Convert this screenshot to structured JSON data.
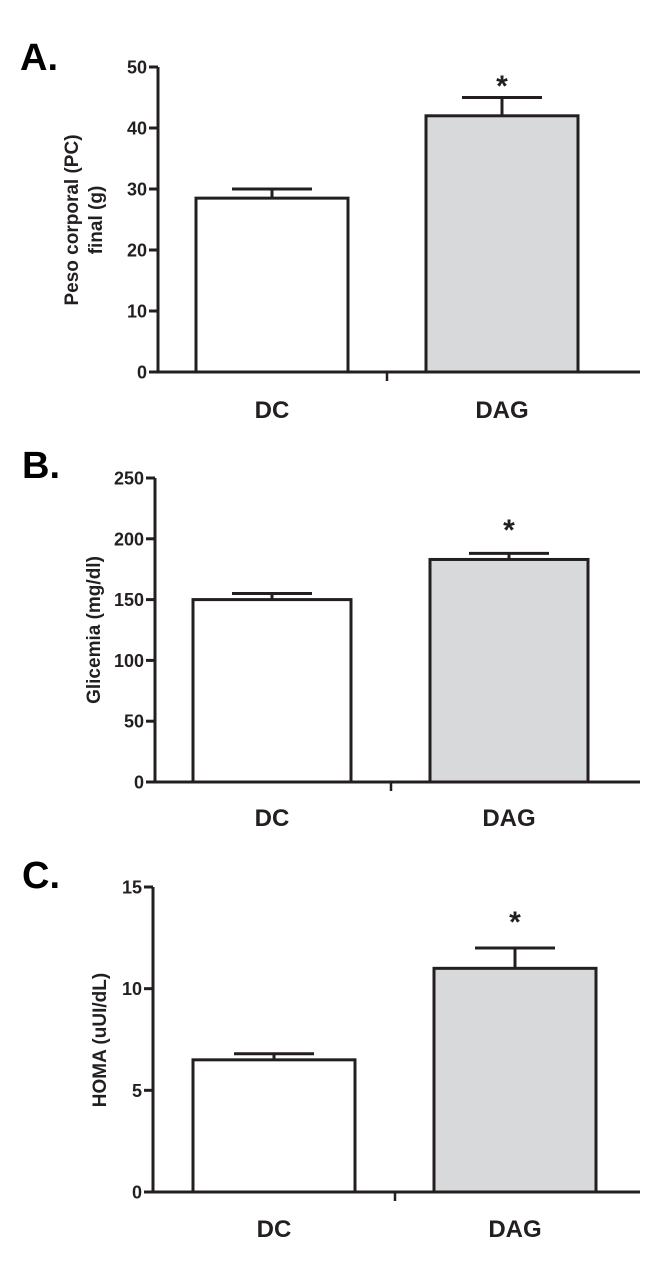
{
  "chart_data": [
    {
      "type": "bar",
      "panel_label": "A.",
      "title": "",
      "xlabel": "",
      "ylabel_lines": [
        "Peso corporal (PC)",
        "final (g)"
      ],
      "categories": [
        "DC",
        "DAG"
      ],
      "values": [
        28.5,
        42
      ],
      "error_upper": [
        30,
        45
      ],
      "significance": [
        "",
        "*"
      ],
      "bar_colors": [
        "#ffffff",
        "#d8d9db"
      ],
      "ylim": [
        0,
        50
      ],
      "yticks": [
        0,
        10,
        20,
        30,
        40,
        50
      ],
      "ytick_labels": [
        "0",
        "10",
        "20",
        "30",
        "40",
        "50"
      ],
      "grid": false,
      "legend": "none"
    },
    {
      "type": "bar",
      "panel_label": "B.",
      "title": "",
      "xlabel": "",
      "ylabel_lines": [
        "Glicemia (mg/dl)"
      ],
      "categories": [
        "DC",
        "DAG"
      ],
      "values": [
        150,
        183
      ],
      "error_upper": [
        155,
        188
      ],
      "significance": [
        "",
        "*"
      ],
      "bar_colors": [
        "#ffffff",
        "#d8d9db"
      ],
      "ylim": [
        0,
        250
      ],
      "yticks": [
        0,
        50,
        100,
        150,
        200,
        250
      ],
      "ytick_labels": [
        "0",
        "50",
        "100",
        "150",
        "200",
        "250"
      ],
      "grid": false,
      "legend": "none"
    },
    {
      "type": "bar",
      "panel_label": "C.",
      "title": "",
      "xlabel": "",
      "ylabel_lines": [
        "HOMA (uUI/dL)"
      ],
      "categories": [
        "DC",
        "DAG"
      ],
      "values": [
        6.5,
        11
      ],
      "error_upper": [
        6.8,
        12
      ],
      "significance": [
        "",
        "*"
      ],
      "bar_colors": [
        "#ffffff",
        "#d8d9db"
      ],
      "ylim": [
        0,
        15
      ],
      "yticks": [
        0,
        5,
        10,
        15
      ],
      "ytick_labels": [
        "0",
        "5",
        "10",
        "15"
      ],
      "grid": false,
      "legend": "none"
    }
  ]
}
